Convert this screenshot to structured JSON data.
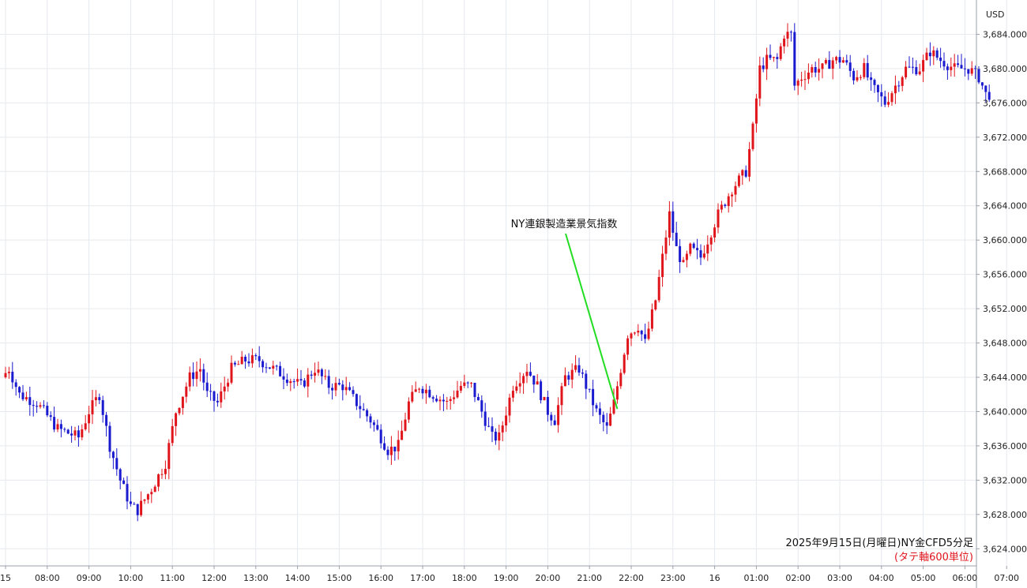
{
  "chart_data": {
    "type": "candlestick",
    "currency_label": "USD",
    "ylim": [
      3622,
      3688
    ],
    "yticks": [
      "3,624.000",
      "3,628.000",
      "3,632.000",
      "3,636.000",
      "3,640.000",
      "3,644.000",
      "3,648.000",
      "3,652.000",
      "3,656.000",
      "3,660.000",
      "3,664.000",
      "3,668.000",
      "3,672.000",
      "3,676.000",
      "3,680.000",
      "3,684.000"
    ],
    "xticks": [
      {
        "label": "15",
        "t": 0
      },
      {
        "label": "08:00",
        "t": 12
      },
      {
        "label": "09:00",
        "t": 24
      },
      {
        "label": "10:00",
        "t": 36
      },
      {
        "label": "11:00",
        "t": 48
      },
      {
        "label": "12:00",
        "t": 60
      },
      {
        "label": "13:00",
        "t": 72
      },
      {
        "label": "14:00",
        "t": 84
      },
      {
        "label": "15:00",
        "t": 96
      },
      {
        "label": "16:00",
        "t": 108
      },
      {
        "label": "17:00",
        "t": 120
      },
      {
        "label": "18:00",
        "t": 132
      },
      {
        "label": "19:00",
        "t": 144
      },
      {
        "label": "20:00",
        "t": 156
      },
      {
        "label": "21:00",
        "t": 168
      },
      {
        "label": "22:00",
        "t": 180
      },
      {
        "label": "23:00",
        "t": 192
      },
      {
        "label": "16",
        "t": 204
      },
      {
        "label": "01:00",
        "t": 216
      },
      {
        "label": "02:00",
        "t": 228
      },
      {
        "label": "03:00",
        "t": 240
      },
      {
        "label": "04:00",
        "t": 252
      },
      {
        "label": "05:00",
        "t": 264
      },
      {
        "label": "06:00",
        "t": 276
      },
      {
        "label": "07:00",
        "t": 288
      }
    ],
    "keypoints": [
      [
        0,
        3644
      ],
      [
        2,
        3645
      ],
      [
        5,
        3642
      ],
      [
        10,
        3641
      ],
      [
        16,
        3638
      ],
      [
        22,
        3637
      ],
      [
        25,
        3640
      ],
      [
        28,
        3642
      ],
      [
        31,
        3636
      ],
      [
        34,
        3632
      ],
      [
        37,
        3629
      ],
      [
        39,
        3628.5
      ],
      [
        43,
        3631
      ],
      [
        47,
        3634
      ],
      [
        50,
        3640
      ],
      [
        54,
        3644
      ],
      [
        57,
        3645
      ],
      [
        59,
        3642
      ],
      [
        62,
        3641
      ],
      [
        66,
        3645
      ],
      [
        70,
        3646
      ],
      [
        74,
        3646
      ],
      [
        78,
        3645
      ],
      [
        82,
        3644
      ],
      [
        86,
        3643
      ],
      [
        90,
        3645
      ],
      [
        94,
        3643
      ],
      [
        98,
        3643
      ],
      [
        102,
        3641
      ],
      [
        106,
        3639
      ],
      [
        109,
        3637
      ],
      [
        111,
        3635.5
      ],
      [
        114,
        3636
      ],
      [
        117,
        3641
      ],
      [
        120,
        3643
      ],
      [
        124,
        3642
      ],
      [
        128,
        3641
      ],
      [
        132,
        3643
      ],
      [
        135,
        3643
      ],
      [
        138,
        3640
      ],
      [
        141,
        3637
      ],
      [
        143,
        3637
      ],
      [
        147,
        3643
      ],
      [
        151,
        3645
      ],
      [
        154,
        3643
      ],
      [
        157,
        3640
      ],
      [
        159,
        3639
      ],
      [
        162,
        3644
      ],
      [
        166,
        3645
      ],
      [
        168,
        3643
      ],
      [
        171,
        3640
      ],
      [
        174,
        3638
      ],
      [
        176,
        3641
      ],
      [
        178,
        3645
      ],
      [
        180,
        3649
      ],
      [
        183,
        3650
      ],
      [
        185,
        3648
      ],
      [
        188,
        3653
      ],
      [
        190,
        3658
      ],
      [
        192,
        3663
      ],
      [
        194,
        3659
      ],
      [
        196,
        3657
      ],
      [
        198,
        3659
      ],
      [
        201,
        3658
      ],
      [
        203,
        3660
      ],
      [
        206,
        3663
      ],
      [
        210,
        3666
      ],
      [
        214,
        3668
      ],
      [
        216,
        3673
      ],
      [
        218,
        3680
      ],
      [
        220,
        3681
      ],
      [
        223,
        3681
      ],
      [
        225,
        3684
      ],
      [
        227,
        3684
      ],
      [
        228,
        3678
      ],
      [
        230,
        3679
      ],
      [
        233,
        3680
      ],
      [
        236,
        3680
      ],
      [
        239,
        3681
      ],
      [
        242,
        3681
      ],
      [
        245,
        3679
      ],
      [
        248,
        3680
      ],
      [
        250,
        3678
      ],
      [
        252,
        3677
      ],
      [
        254,
        3676
      ],
      [
        257,
        3678
      ],
      [
        260,
        3680
      ],
      [
        264,
        3680
      ],
      [
        267,
        3682
      ],
      [
        270,
        3681
      ],
      [
        274,
        3680
      ],
      [
        278,
        3680
      ],
      [
        281,
        3679
      ],
      [
        283,
        3677
      ]
    ],
    "up_color": "#e0141b",
    "down_color": "#1a1acf",
    "annotation": {
      "text": "NY連銀製造業景気指数",
      "color": "#22dd22",
      "t": 176,
      "price": 3640.3
    },
    "caption": {
      "line1": "2025年9月15日(月曜日)NY金CFD5分足",
      "line2": "(タテ軸600単位)"
    }
  }
}
